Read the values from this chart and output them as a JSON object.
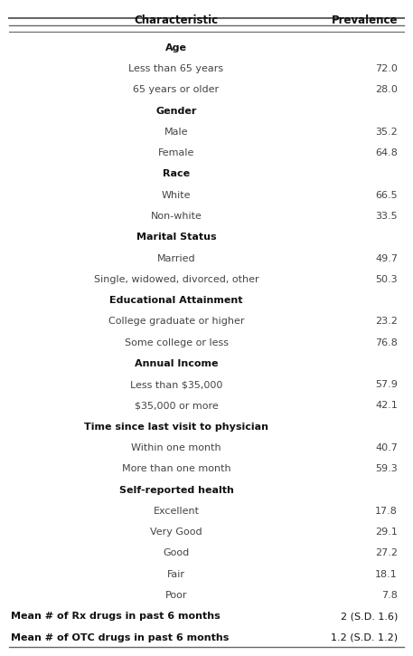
{
  "col1_header": "Characteristic",
  "col2_header": "Prevalence",
  "rows": [
    {
      "label": "Age",
      "value": "",
      "bold": true
    },
    {
      "label": "Less than 65 years",
      "value": "72.0",
      "bold": false
    },
    {
      "label": "65 years or older",
      "value": "28.0",
      "bold": false
    },
    {
      "label": "Gender",
      "value": "",
      "bold": true
    },
    {
      "label": "Male",
      "value": "35.2",
      "bold": false
    },
    {
      "label": "Female",
      "value": "64.8",
      "bold": false
    },
    {
      "label": "Race",
      "value": "",
      "bold": true
    },
    {
      "label": "White",
      "value": "66.5",
      "bold": false
    },
    {
      "label": "Non-white",
      "value": "33.5",
      "bold": false
    },
    {
      "label": "Marital Status",
      "value": "",
      "bold": true
    },
    {
      "label": "Married",
      "value": "49.7",
      "bold": false
    },
    {
      "label": "Single, widowed, divorced, other",
      "value": "50.3",
      "bold": false
    },
    {
      "label": "Educational Attainment",
      "value": "",
      "bold": true
    },
    {
      "label": "College graduate or higher",
      "value": "23.2",
      "bold": false
    },
    {
      "label": "Some college or less",
      "value": "76.8",
      "bold": false
    },
    {
      "label": "Annual Income",
      "value": "",
      "bold": true
    },
    {
      "label": "Less than $35,000",
      "value": "57.9",
      "bold": false
    },
    {
      "label": "$35,000 or more",
      "value": "42.1",
      "bold": false
    },
    {
      "label": "Time since last visit to physician",
      "value": "",
      "bold": true
    },
    {
      "label": "Within one month",
      "value": "40.7",
      "bold": false
    },
    {
      "label": "More than one month",
      "value": "59.3",
      "bold": false
    },
    {
      "label": "Self-reported health",
      "value": "",
      "bold": true
    },
    {
      "label": "Excellent",
      "value": "17.8",
      "bold": false
    },
    {
      "label": "Very Good",
      "value": "29.1",
      "bold": false
    },
    {
      "label": "Good",
      "value": "27.2",
      "bold": false
    },
    {
      "label": "Fair",
      "value": "18.1",
      "bold": false
    },
    {
      "label": "Poor",
      "value": "7.8",
      "bold": false
    },
    {
      "label": "Mean # of Rx drugs in past 6 months",
      "value": "2 (S.D. 1.6)",
      "bold": true
    },
    {
      "label": "Mean # of OTC drugs in past 6 months",
      "value": "1.2 (S.D. 1.2)",
      "bold": true
    }
  ],
  "text_color": "#444444",
  "bold_color": "#111111",
  "line_color": "#666666",
  "font_size": 8.0,
  "header_font_size": 8.5
}
